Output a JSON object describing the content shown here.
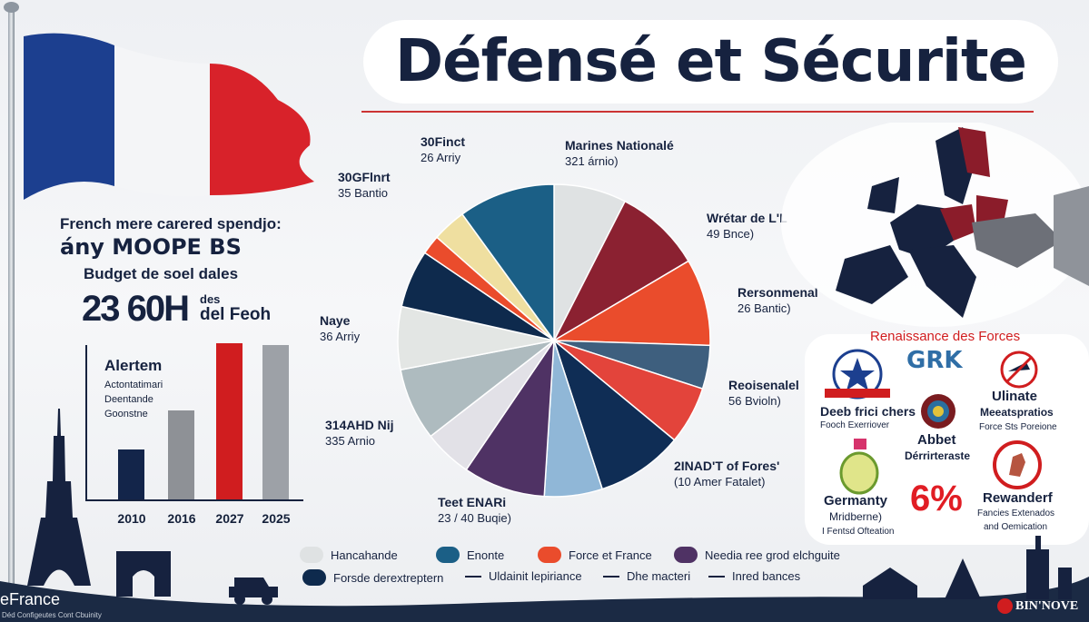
{
  "header": {
    "title": "Défensé et Sécurite"
  },
  "left": {
    "line1": "French mere carered spendjo:",
    "line2": "ány MOOPE BS",
    "budget_label": "Budget de soel dales",
    "budget_value": "23 60H",
    "budget_unit1": "des",
    "budget_unit2": "del Feoh",
    "chart_title": "Alertem",
    "chart_notes": [
      "Actontatimari",
      "Deentande",
      "Goonstne"
    ]
  },
  "chart_data": [
    {
      "type": "bar",
      "title": "Alertem",
      "categories": [
        "2010",
        "2016",
        "2027",
        "2025"
      ],
      "values": [
        32,
        57,
        100,
        99
      ],
      "colors": [
        "#13254a",
        "#8e9196",
        "#d01d1f",
        "#9da1a7"
      ],
      "ylim": [
        0,
        100
      ],
      "grid": false
    },
    {
      "type": "pie",
      "slices": [
        {
          "value": 7.5,
          "color": "#dfe2e3"
        },
        {
          "value": 9,
          "color": "#8b2131"
        },
        {
          "value": 9,
          "color": "#ea4c2c"
        },
        {
          "value": 4.5,
          "color": "#3e5f7e"
        },
        {
          "value": 6,
          "color": "#e3443b"
        },
        {
          "value": 9,
          "color": "#0f2d55"
        },
        {
          "value": 6,
          "color": "#90b7d7"
        },
        {
          "value": 8.5,
          "color": "#4f3264"
        },
        {
          "value": 5,
          "color": "#e2e1e7"
        },
        {
          "value": 7.5,
          "color": "#aebbbf"
        },
        {
          "value": 6.5,
          "color": "#e3e6e4"
        },
        {
          "value": 6,
          "color": "#0e2a4d"
        },
        {
          "value": 2,
          "color": "#ea4c2c"
        },
        {
          "value": 3.5,
          "color": "#efdfa0"
        },
        {
          "value": 10,
          "color": "#1b5f86"
        }
      ],
      "annotations": [
        {
          "name": "30Finct",
          "value": "26 Arriy"
        },
        {
          "name": "Marines Nationalé",
          "value": "321 árnio)"
        },
        {
          "name": "30GFlnrt",
          "value": "35 Bantio"
        },
        {
          "name": "Wrétar de L'L",
          "value": "49 Bnce)"
        },
        {
          "name": "Rersonmenal",
          "value": "26 Bantic)"
        },
        {
          "name": "Naye",
          "value": "36 Arriy"
        },
        {
          "name": "Reoisenalel",
          "value": "56 Bvioln)"
        },
        {
          "name": "314AHD Nij",
          "value": "335 Arnio"
        },
        {
          "name": "2INAD'T of Fores'",
          "value": "(10 Amer Fatalet)"
        },
        {
          "name": "Teet ENARi",
          "value": "23 / 40 Buqie)"
        }
      ]
    }
  ],
  "legend": [
    {
      "label": "Hancahande",
      "color": "#dfe2e3",
      "kind": "swatch"
    },
    {
      "label": "Enonte",
      "color": "#1b5f86",
      "kind": "swatch"
    },
    {
      "label": "Force et France",
      "color": "#ea4c2c",
      "kind": "swatch"
    },
    {
      "label": "Needia ree grod elchguite",
      "color": "#4f3264",
      "kind": "swatch"
    },
    {
      "label": "Forsde derextreptern",
      "color": "#0e2a4d",
      "kind": "swatch"
    },
    {
      "label": "Uldainit lepiriance",
      "kind": "dash"
    },
    {
      "label": "Dhe macteri",
      "kind": "dash"
    },
    {
      "label": "Inred bances",
      "kind": "dash"
    }
  ],
  "right": {
    "heading": "Renaissance des Forces",
    "logo_text": "GRK",
    "items": [
      {
        "title": "Deeb frici chers",
        "sub": "Fooch Exerriover"
      },
      {
        "title": "Ulinate",
        "title2": "Meeatspratios",
        "sub": "Force Sts Poreione"
      },
      {
        "title": "Abbet",
        "title2": "Dérrirteraste"
      },
      {
        "title": "Germanty",
        "title2": "Mridberne)",
        "sub": "I Fentsd Ofteation"
      },
      {
        "title": "Rewanderf",
        "sub": "Fancies Extenados",
        "sub2": "and Oemication"
      }
    ],
    "percent": "6%"
  },
  "footer": {
    "brand": "eFrance",
    "tagline": "Déd Configeutes Cont Cbuinity",
    "right_brand": "BIN'NOVE"
  },
  "colors": {
    "navy": "#16223f",
    "red": "#d01d1f",
    "footer": "#1b2a44"
  }
}
